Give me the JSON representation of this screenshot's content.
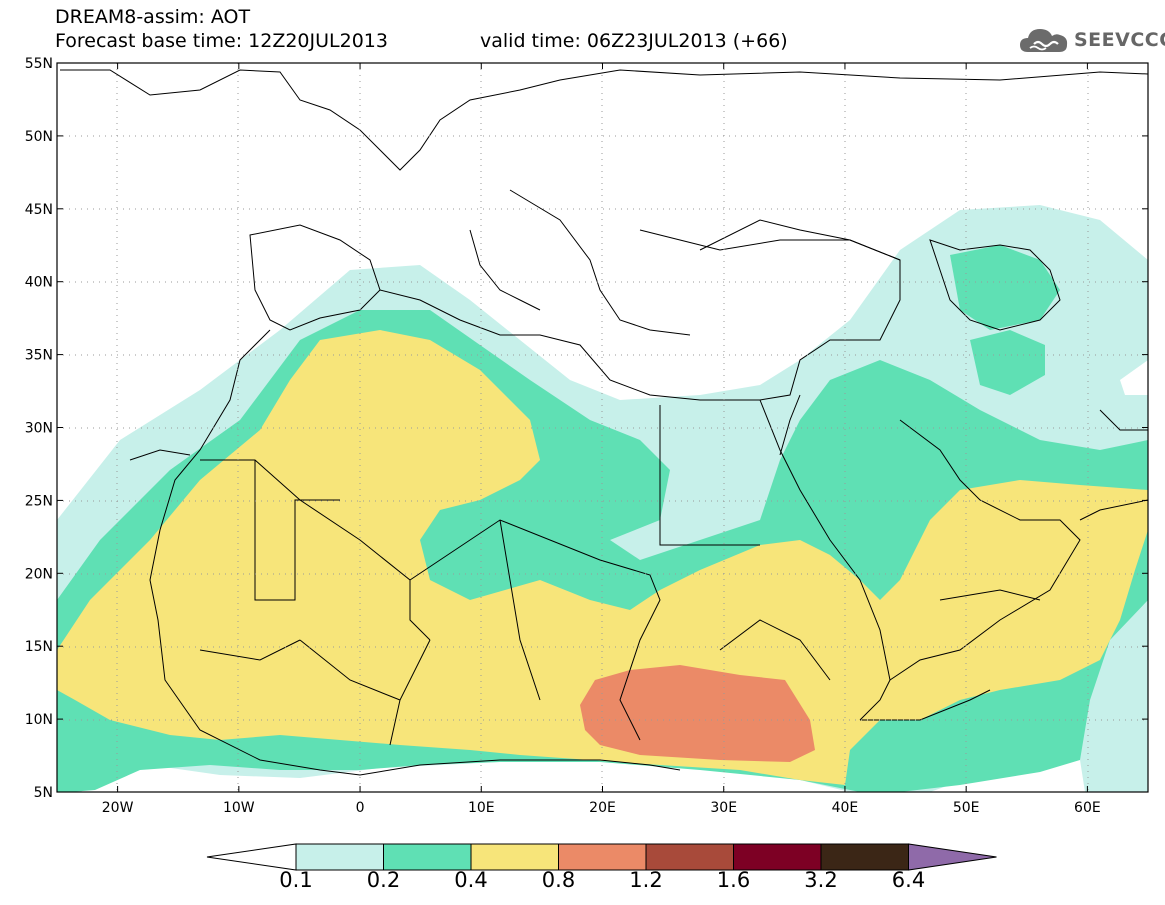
{
  "header": {
    "model_line": "DREAM8-assim: AOT",
    "base_time_line": "Forecast base time: 12Z20JUL2013",
    "valid_time_line": "valid time: 06Z23JUL2013 (+66)",
    "logo_text": "SEEVCCC"
  },
  "map": {
    "lat_range": [
      5,
      55
    ],
    "lon_range": [
      -25,
      65
    ],
    "lat_tick_labels": [
      "55N",
      "50N",
      "45N",
      "40N",
      "35N",
      "30N",
      "25N",
      "20N",
      "15N",
      "10N",
      "5N"
    ],
    "lon_tick_labels": [
      "20W",
      "10W",
      "0",
      "10E",
      "20E",
      "30E",
      "40E",
      "50E",
      "60E"
    ],
    "grid": "dotted"
  },
  "colorbar": {
    "labels": [
      "0.1",
      "0.2",
      "0.4",
      "0.8",
      "1.2",
      "1.6",
      "3.2",
      "6.4"
    ],
    "colors": [
      "#c7f0ea",
      "#5fe0b4",
      "#f7e57a",
      "#eb8a67",
      "#a84a3a",
      "#7d0024",
      "#3b2616",
      "#8f6aa9"
    ]
  }
}
